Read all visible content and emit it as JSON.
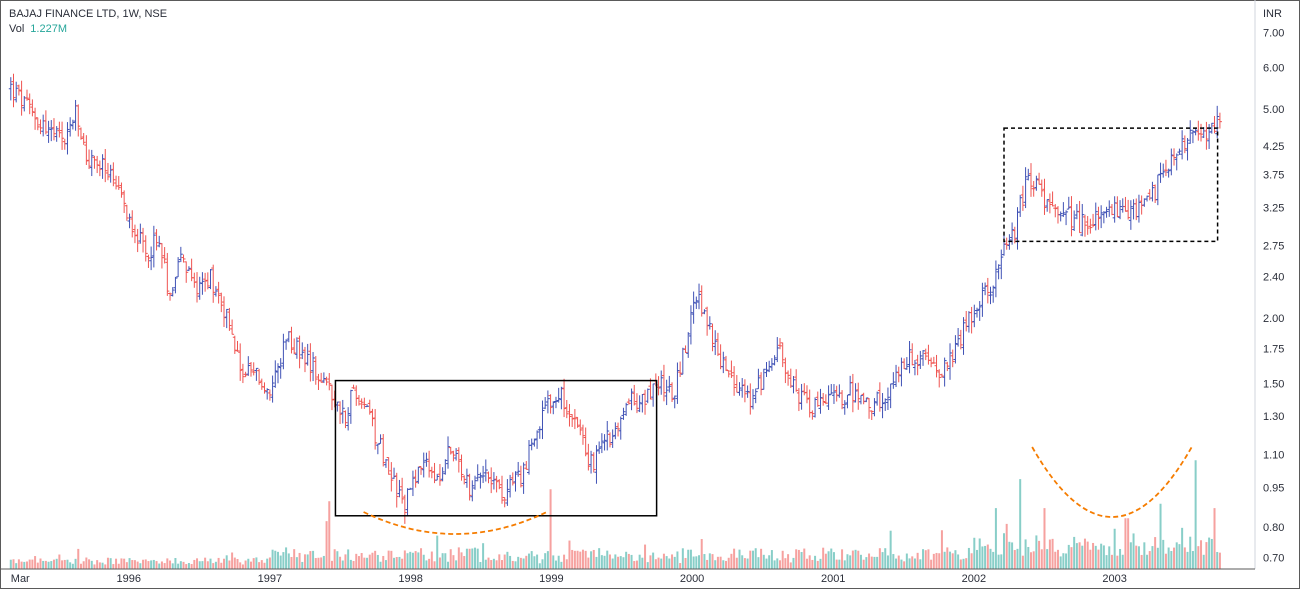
{
  "legend": {
    "symbol": "BAJAJ FINANCE LTD, 1W, NSE",
    "vol_label": "Vol",
    "vol_value": "1.227M"
  },
  "colors": {
    "up": "#3f51b5",
    "down": "#ef5350",
    "vol_up": "#26a69a",
    "vol_down": "#ef5350",
    "curve": "#f57c00",
    "box": "#000000"
  },
  "chart_data": {
    "type": "ohlc",
    "title": "",
    "currency_label": "INR",
    "y_scale": "log",
    "ylim": [
      0.62,
      8.0
    ],
    "y_ticks": [
      "0.70",
      "0.80",
      "0.95",
      "1.10",
      "1.30",
      "1.50",
      "1.75",
      "2.00",
      "2.40",
      "2.75",
      "3.25",
      "3.75",
      "4.25",
      "5.00",
      "6.00",
      "7.00"
    ],
    "x_range": [
      "1995-02-01",
      "2003-12-31"
    ],
    "x_ticks": [
      {
        "label": "Mar",
        "date": "1995-03-01"
      },
      {
        "label": "1996",
        "date": "1996-01-01"
      },
      {
        "label": "1997",
        "date": "1997-01-01"
      },
      {
        "label": "1998",
        "date": "1998-01-01"
      },
      {
        "label": "1999",
        "date": "1999-01-01"
      },
      {
        "label": "2000",
        "date": "2000-01-01"
      },
      {
        "label": "2001",
        "date": "2001-01-01"
      },
      {
        "label": "2002",
        "date": "2002-01-01"
      },
      {
        "label": "2003",
        "date": "2003-01-01"
      }
    ],
    "series": [
      {
        "kind": "price-close-path",
        "points": [
          [
            "1995-03-01",
            5.5
          ],
          [
            "1995-04-15",
            5.0
          ],
          [
            "1995-06-01",
            4.6
          ],
          [
            "1995-07-15",
            4.3
          ],
          [
            "1995-08-15",
            4.9
          ],
          [
            "1995-09-15",
            4.0
          ],
          [
            "1995-11-01",
            3.85
          ],
          [
            "1995-12-15",
            3.3
          ],
          [
            "1996-01-15",
            3.0
          ],
          [
            "1996-02-15",
            2.6
          ],
          [
            "1996-03-15",
            2.9
          ],
          [
            "1996-04-15",
            2.25
          ],
          [
            "1996-05-15",
            2.6
          ],
          [
            "1996-06-15",
            2.3
          ],
          [
            "1996-08-01",
            2.4
          ],
          [
            "1996-09-15",
            2.0
          ],
          [
            "1996-10-15",
            1.6
          ],
          [
            "1996-12-01",
            1.55
          ],
          [
            "1997-01-01",
            1.4
          ],
          [
            "1997-02-15",
            1.85
          ],
          [
            "1997-04-15",
            1.65
          ],
          [
            "1997-06-01",
            1.5
          ],
          [
            "1997-07-15",
            1.3
          ],
          [
            "1997-08-01",
            1.45
          ],
          [
            "1997-09-15",
            1.3
          ],
          [
            "1997-11-01",
            1.05
          ],
          [
            "1997-12-15",
            0.88
          ],
          [
            "1998-02-01",
            1.1
          ],
          [
            "1998-03-15",
            0.95
          ],
          [
            "1998-04-15",
            1.15
          ],
          [
            "1998-06-01",
            0.95
          ],
          [
            "1998-07-15",
            1.05
          ],
          [
            "1998-09-01",
            0.92
          ],
          [
            "1998-10-15",
            1.0
          ],
          [
            "1998-12-01",
            1.25
          ],
          [
            "1999-01-15",
            1.45
          ],
          [
            "1999-03-01",
            1.3
          ],
          [
            "1999-04-15",
            1.05
          ],
          [
            "1999-06-01",
            1.2
          ],
          [
            "1999-07-15",
            1.38
          ],
          [
            "1999-09-01",
            1.4
          ],
          [
            "1999-10-15",
            1.5
          ],
          [
            "1999-11-15",
            1.45
          ],
          [
            "1999-12-15",
            1.8
          ],
          [
            "2000-01-15",
            2.2
          ],
          [
            "2000-03-01",
            1.75
          ],
          [
            "2000-04-15",
            1.5
          ],
          [
            "2000-06-01",
            1.4
          ],
          [
            "2000-07-15",
            1.6
          ],
          [
            "2000-08-15",
            1.7
          ],
          [
            "2000-10-01",
            1.45
          ],
          [
            "2000-11-15",
            1.35
          ],
          [
            "2001-01-01",
            1.4
          ],
          [
            "2001-02-15",
            1.45
          ],
          [
            "2001-04-01",
            1.35
          ],
          [
            "2001-06-01",
            1.45
          ],
          [
            "2001-07-15",
            1.7
          ],
          [
            "2001-09-01",
            1.65
          ],
          [
            "2001-10-15",
            1.6
          ],
          [
            "2001-12-01",
            1.85
          ],
          [
            "2002-01-15",
            2.15
          ],
          [
            "2002-02-15",
            2.3
          ],
          [
            "2002-03-15",
            2.7
          ],
          [
            "2002-04-15",
            2.9
          ],
          [
            "2002-05-15",
            3.6
          ],
          [
            "2002-06-15",
            3.7
          ],
          [
            "2002-07-15",
            3.2
          ],
          [
            "2002-09-01",
            3.15
          ],
          [
            "2002-10-15",
            3.0
          ],
          [
            "2002-12-01",
            3.15
          ],
          [
            "2003-01-15",
            3.2
          ],
          [
            "2003-03-01",
            3.15
          ],
          [
            "2003-04-15",
            3.5
          ],
          [
            "2003-05-15",
            3.9
          ],
          [
            "2003-06-15",
            4.0
          ],
          [
            "2003-07-15",
            4.7
          ],
          [
            "2003-08-15",
            4.6
          ],
          [
            "2003-09-01",
            4.4
          ],
          [
            "2003-10-01",
            4.8
          ]
        ]
      },
      {
        "kind": "volume",
        "peaks": [
          [
            "1997-06-01",
            0.33
          ],
          [
            "1999-01-01",
            0.55
          ],
          [
            "2002-03-01",
            0.42
          ],
          [
            "2002-05-01",
            0.62
          ],
          [
            "2002-07-01",
            0.42
          ],
          [
            "2003-02-01",
            0.35
          ],
          [
            "2003-05-01",
            0.45
          ],
          [
            "2003-08-01",
            0.75
          ],
          [
            "2003-09-15",
            0.42
          ]
        ]
      }
    ],
    "annotations": [
      {
        "type": "rect",
        "style": "solid",
        "x0": "1997-06-20",
        "x1": "1999-10-01",
        "y0": 0.84,
        "y1": 1.52
      },
      {
        "type": "rect",
        "style": "dashed",
        "x0": "2002-03-20",
        "x1": "2003-09-25",
        "y0": 2.8,
        "y1": 4.6
      },
      {
        "type": "curve",
        "style": "dashed",
        "x0": "1997-09-01",
        "x1": "1998-12-20",
        "depth": 22
      },
      {
        "type": "curve",
        "style": "dashed",
        "x0": "2002-06-01",
        "x1": "2003-07-20",
        "depth": 70
      }
    ]
  }
}
